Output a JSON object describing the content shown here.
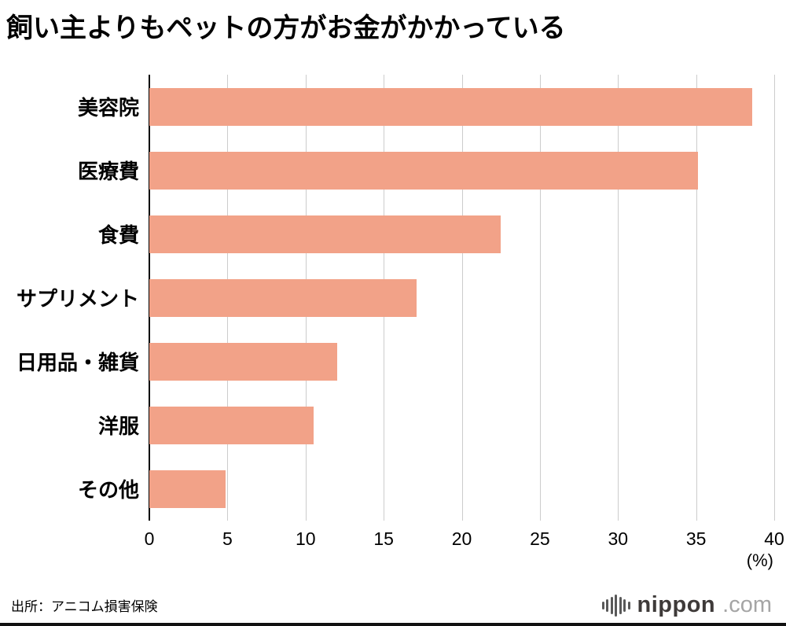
{
  "title": "飼い主よりもペットの方がお金がかかっている",
  "source": "出所：アニコム損害保険",
  "logo": {
    "name": "nippon",
    "tld": ".com",
    "icon": "soundwave-bars-icon"
  },
  "chart_data": {
    "type": "bar",
    "orientation": "horizontal",
    "title": "飼い主よりもペットの方がお金がかかっている",
    "categories": [
      "美容院",
      "医療費",
      "食費",
      "サプリメント",
      "日用品・雑貨",
      "洋服",
      "その他"
    ],
    "values": [
      38.6,
      35.1,
      22.5,
      17.1,
      12.0,
      10.5,
      4.9
    ],
    "xlabel": "(%)",
    "xlim": [
      0,
      40
    ],
    "xticks": [
      0,
      5,
      10,
      15,
      20,
      25,
      30,
      35,
      40
    ],
    "bar_color": "#F2A288",
    "gridline_color": "#cccccc",
    "axis_color": "#000000",
    "grid": true,
    "legend": false
  }
}
